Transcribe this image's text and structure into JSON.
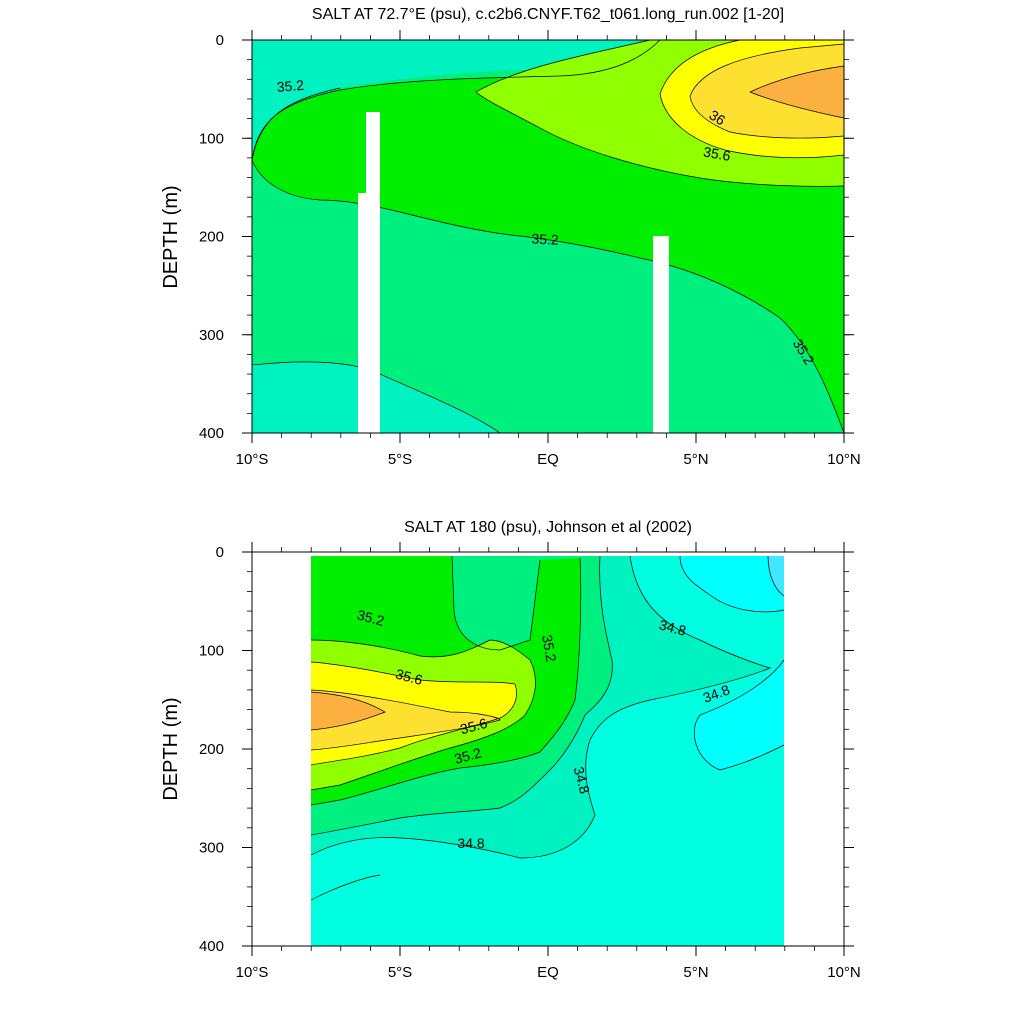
{
  "colors": {
    "c348": "#00ffe0",
    "c350": "#00f2c0",
    "c352": "#00f080",
    "c354": "#00ee00",
    "c356": "#90ff00",
    "c358": "#ffff00",
    "c360": "#fde030",
    "c362": "#fbb040",
    "c346": "#00ffff"
  },
  "chart_data": [
    {
      "type": "contour",
      "title": "SALT AT  72.7°E (psu), c.c2b6.CNYF.T62_t061.long_run.002 [1-20]",
      "ylabel": "DEPTH (m)",
      "xlabel": "",
      "x_ticks": [
        "10°S",
        "5°S",
        "EQ",
        "5°N",
        "10°N"
      ],
      "y_ticks": [
        "0",
        "100",
        "200",
        "300",
        "400"
      ],
      "xlim": [
        -10,
        10
      ],
      "ylim": [
        0,
        400
      ],
      "y_reversed": true,
      "contour_labels": [
        {
          "text": "35.2",
          "lat": -8.7,
          "depth": 48,
          "angle": -5
        },
        {
          "text": "35.2",
          "lat": -0.1,
          "depth": 204,
          "angle": 3
        },
        {
          "text": "35.2",
          "lat": 8.6,
          "depth": 318,
          "angle": 58
        },
        {
          "text": "36",
          "lat": 5.7,
          "depth": 80,
          "angle": 32
        },
        {
          "text": "35.6",
          "lat": 5.7,
          "depth": 117,
          "angle": 10
        }
      ]
    },
    {
      "type": "contour",
      "title": "SALT AT 180 (psu), Johnson et al (2002)",
      "ylabel": "DEPTH (m)",
      "xlabel": "",
      "x_ticks": [
        "10°S",
        "5°S",
        "EQ",
        "5°N",
        "10°N"
      ],
      "y_ticks": [
        "0",
        "100",
        "200",
        "300",
        "400"
      ],
      "xlim": [
        -10,
        10
      ],
      "ylim": [
        0,
        400
      ],
      "y_reversed": true,
      "data_range_lat": [
        -8,
        8
      ],
      "contour_labels": [
        {
          "text": "35.2",
          "lat": -6,
          "depth": 68,
          "angle": 15
        },
        {
          "text": "35.6",
          "lat": -4.7,
          "depth": 128,
          "angle": 15
        },
        {
          "text": "35.6",
          "lat": -2.5,
          "depth": 178,
          "angle": -15
        },
        {
          "text": "35.2",
          "lat": -2.7,
          "depth": 208,
          "angle": -15
        },
        {
          "text": "35.2",
          "lat": 0,
          "depth": 98,
          "angle": 80
        },
        {
          "text": "34.8",
          "lat": 4.2,
          "depth": 78,
          "angle": 15
        },
        {
          "text": "34.8",
          "lat": 5.7,
          "depth": 145,
          "angle": -20
        },
        {
          "text": "34.8",
          "lat": 1.1,
          "depth": 232,
          "angle": 75
        },
        {
          "text": "34.8",
          "lat": -2.6,
          "depth": 297,
          "angle": 0
        }
      ]
    }
  ]
}
